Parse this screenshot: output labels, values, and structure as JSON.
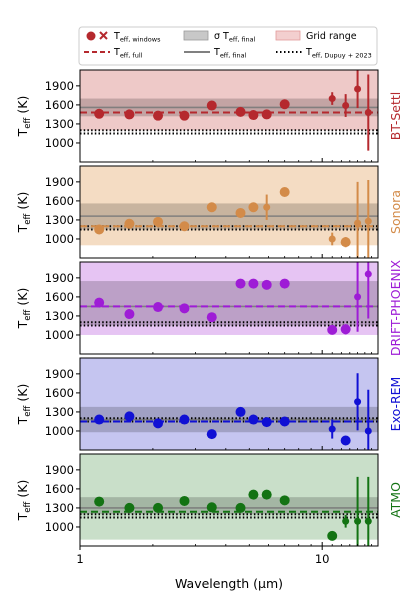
{
  "legend": {
    "entries": [
      {
        "id": "windows",
        "label": "T",
        "sub": "eff, windows"
      },
      {
        "id": "full",
        "label": "T",
        "sub": "eff, full"
      },
      {
        "id": "sigma",
        "label": "σ T",
        "sub": "eff, final"
      },
      {
        "id": "final",
        "label": "T",
        "sub": "eff, final"
      },
      {
        "id": "grid",
        "label": "Grid range",
        "sub": ""
      },
      {
        "id": "dupuy",
        "label": "T",
        "sub": "eff, Dupuy + 2023"
      }
    ]
  },
  "chart_data": {
    "type": "scatter",
    "xlabel": "Wavelength (µm)",
    "xscale": "log",
    "xlim": [
      1,
      17
    ],
    "xticks": [
      {
        "v": 1,
        "label": "1"
      },
      {
        "v": 10,
        "label": "10"
      }
    ],
    "ylabel_main": "T",
    "ylabel_sub": "eff",
    "ylabel_unit": "(K)",
    "ylim": [
      700,
      2150
    ],
    "yticks": [
      1000,
      1300,
      1600,
      1900
    ],
    "dupuy_teff": [
      1150,
      1200
    ],
    "panels": [
      {
        "model": "BT-Settl",
        "color": "#b5292e",
        "grid_range": [
          1200,
          2150
        ],
        "grid_color": "#eec9c8",
        "t_full": 1480,
        "t_final": 1560,
        "sigma": [
          1420,
          1700
        ],
        "x_points": [
          {
            "x": 1.2,
            "y": 1460,
            "err": 0
          },
          {
            "x": 1.6,
            "y": 1450,
            "err": 0
          },
          {
            "x": 2.1,
            "y": 1430,
            "err": 0
          },
          {
            "x": 2.7,
            "y": 1430,
            "err": 0
          }
        ],
        "points": [
          {
            "x": 3.5,
            "y": 1590,
            "err": 0
          },
          {
            "x": 4.6,
            "y": 1490,
            "err": 0
          },
          {
            "x": 5.2,
            "y": 1440,
            "err": 0
          },
          {
            "x": 5.9,
            "y": 1450,
            "err": 0
          },
          {
            "x": 7.0,
            "y": 1610,
            "err": 0
          },
          {
            "x": 11.0,
            "y": 1700,
            "err": 100
          },
          {
            "x": 12.5,
            "y": 1590,
            "err": 180
          },
          {
            "x": 14.0,
            "y": 1850,
            "err": 300
          },
          {
            "x": 15.5,
            "y": 1480,
            "err": 600
          }
        ]
      },
      {
        "model": "Sonora",
        "color": "#d38b49",
        "grid_range": [
          900,
          2150
        ],
        "grid_color": "#f4dcc3",
        "t_full": 1200,
        "t_final": 1360,
        "sigma": [
          1150,
          1560
        ],
        "x_points": [],
        "points": [
          {
            "x": 1.2,
            "y": 1150,
            "err": 0
          },
          {
            "x": 1.6,
            "y": 1240,
            "err": 0
          },
          {
            "x": 2.1,
            "y": 1270,
            "err": 0
          },
          {
            "x": 2.7,
            "y": 1200,
            "err": 0
          },
          {
            "x": 3.5,
            "y": 1500,
            "err": 0
          },
          {
            "x": 4.6,
            "y": 1410,
            "err": 0
          },
          {
            "x": 5.2,
            "y": 1500,
            "err": 0
          },
          {
            "x": 5.9,
            "y": 1500,
            "err": 200
          },
          {
            "x": 7.0,
            "y": 1740,
            "err": 0
          },
          {
            "x": 11.0,
            "y": 1000,
            "err": 100
          },
          {
            "x": 12.5,
            "y": 950,
            "err": 80
          },
          {
            "x": 14.0,
            "y": 1250,
            "err": 650
          },
          {
            "x": 15.5,
            "y": 1280,
            "err": 650
          }
        ]
      },
      {
        "model": "DRIFT-PHOENIX",
        "color": "#9e1cd6",
        "grid_range": [
          1000,
          2150
        ],
        "grid_color": "#e6c4f3",
        "t_full": 1450,
        "t_final": 1450,
        "sigma": [
          1150,
          1850
        ],
        "x_points": [],
        "points": [
          {
            "x": 1.2,
            "y": 1510,
            "err": 0
          },
          {
            "x": 1.6,
            "y": 1330,
            "err": 0
          },
          {
            "x": 2.1,
            "y": 1440,
            "err": 0
          },
          {
            "x": 2.7,
            "y": 1420,
            "err": 0
          },
          {
            "x": 3.5,
            "y": 1280,
            "err": 0
          },
          {
            "x": 4.6,
            "y": 1810,
            "err": 0
          },
          {
            "x": 5.2,
            "y": 1810,
            "err": 0
          },
          {
            "x": 5.9,
            "y": 1790,
            "err": 0
          },
          {
            "x": 7.0,
            "y": 1810,
            "err": 0
          },
          {
            "x": 11.0,
            "y": 1080,
            "err": 50
          },
          {
            "x": 12.5,
            "y": 1090,
            "err": 80
          },
          {
            "x": 14.0,
            "y": 1600,
            "err": 550
          },
          {
            "x": 15.5,
            "y": 1960,
            "err": 700
          }
        ]
      },
      {
        "model": "Exo-REM",
        "color": "#1010d4",
        "grid_range": [
          700,
          2150
        ],
        "grid_color": "#c5c5f0",
        "t_full": 1150,
        "t_final": 1180,
        "sigma": [
          980,
          1380
        ],
        "x_points": [],
        "points": [
          {
            "x": 1.2,
            "y": 1180,
            "err": 0
          },
          {
            "x": 1.6,
            "y": 1230,
            "err": 0
          },
          {
            "x": 2.1,
            "y": 1120,
            "err": 0
          },
          {
            "x": 2.7,
            "y": 1180,
            "err": 0
          },
          {
            "x": 3.5,
            "y": 950,
            "err": 0
          },
          {
            "x": 4.6,
            "y": 1300,
            "err": 0
          },
          {
            "x": 5.2,
            "y": 1180,
            "err": 0
          },
          {
            "x": 5.9,
            "y": 1140,
            "err": 0
          },
          {
            "x": 7.0,
            "y": 1150,
            "err": 0
          },
          {
            "x": 11.0,
            "y": 1030,
            "err": 150
          },
          {
            "x": 12.5,
            "y": 850,
            "err": 70
          },
          {
            "x": 14.0,
            "y": 1460,
            "err": 450
          },
          {
            "x": 15.5,
            "y": 1000,
            "err": 650
          }
        ]
      },
      {
        "model": "ATMO",
        "color": "#137313",
        "grid_range": [
          800,
          2150
        ],
        "grid_color": "#c9dfc9",
        "t_full": 1240,
        "t_final": 1300,
        "sigma": [
          1200,
          1470
        ],
        "x_points": [],
        "points": [
          {
            "x": 1.2,
            "y": 1400,
            "err": 0
          },
          {
            "x": 1.6,
            "y": 1300,
            "err": 0
          },
          {
            "x": 2.1,
            "y": 1300,
            "err": 0
          },
          {
            "x": 2.7,
            "y": 1410,
            "err": 0
          },
          {
            "x": 3.5,
            "y": 1310,
            "err": 0
          },
          {
            "x": 4.6,
            "y": 1300,
            "err": 0
          },
          {
            "x": 5.2,
            "y": 1510,
            "err": 0
          },
          {
            "x": 5.9,
            "y": 1510,
            "err": 0
          },
          {
            "x": 7.0,
            "y": 1420,
            "err": 0
          },
          {
            "x": 11.0,
            "y": 860,
            "err": 50
          },
          {
            "x": 12.5,
            "y": 1090,
            "err": 100
          },
          {
            "x": 14.0,
            "y": 1090,
            "err": 700
          },
          {
            "x": 15.5,
            "y": 1090,
            "err": 700
          }
        ]
      }
    ]
  }
}
